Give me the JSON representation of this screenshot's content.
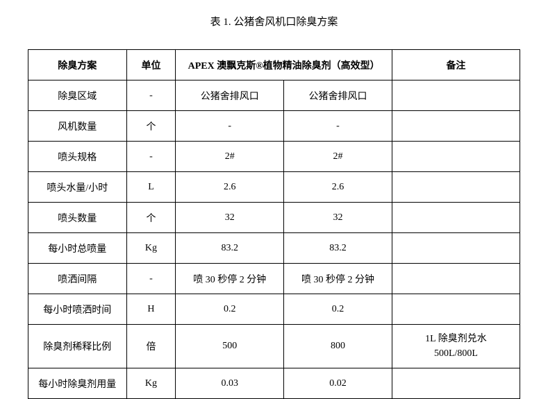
{
  "title": "表 1.  公猪舍风机口除臭方案",
  "headers": {
    "plan": "除臭方案",
    "unit": "单位",
    "product": "APEX 澳飘克斯®植物精油除臭剂（高效型）",
    "note": "备注"
  },
  "rows": [
    {
      "plan": "除臭区域",
      "unit": "-",
      "v1": "公猪舍排风口",
      "v2": "公猪舍排风口",
      "note": ""
    },
    {
      "plan": "风机数量",
      "unit": "个",
      "v1": "-",
      "v2": "-",
      "note": ""
    },
    {
      "plan": "喷头规格",
      "unit": "-",
      "v1": "2#",
      "v2": "2#",
      "note": ""
    },
    {
      "plan": "喷头水量/小时",
      "unit": "L",
      "v1": "2.6",
      "v2": "2.6",
      "note": ""
    },
    {
      "plan": "喷头数量",
      "unit": "个",
      "v1": "32",
      "v2": "32",
      "note": ""
    },
    {
      "plan": "每小时总喷量",
      "unit": "Kg",
      "v1": "83.2",
      "v2": "83.2",
      "note": ""
    },
    {
      "plan": "喷洒间隔",
      "unit": "-",
      "v1": "喷 30 秒停 2 分钟",
      "v2": "喷 30 秒停 2 分钟",
      "note": ""
    },
    {
      "plan": "每小时喷洒时间",
      "unit": "H",
      "v1": "0.2",
      "v2": "0.2",
      "note": ""
    },
    {
      "plan": "除臭剂稀释比例",
      "unit": "倍",
      "v1": "500",
      "v2": "800",
      "note": "1L 除臭剂兑水\n500L/800L"
    },
    {
      "plan": "每小时除臭剂用量",
      "unit": "Kg",
      "v1": "0.03",
      "v2": "0.02",
      "note": ""
    }
  ],
  "colors": {
    "background": "#ffffff",
    "border": "#000000",
    "text": "#000000"
  },
  "typography": {
    "title_fontsize": 15,
    "cell_fontsize": 14,
    "font_family": "SimSun"
  }
}
